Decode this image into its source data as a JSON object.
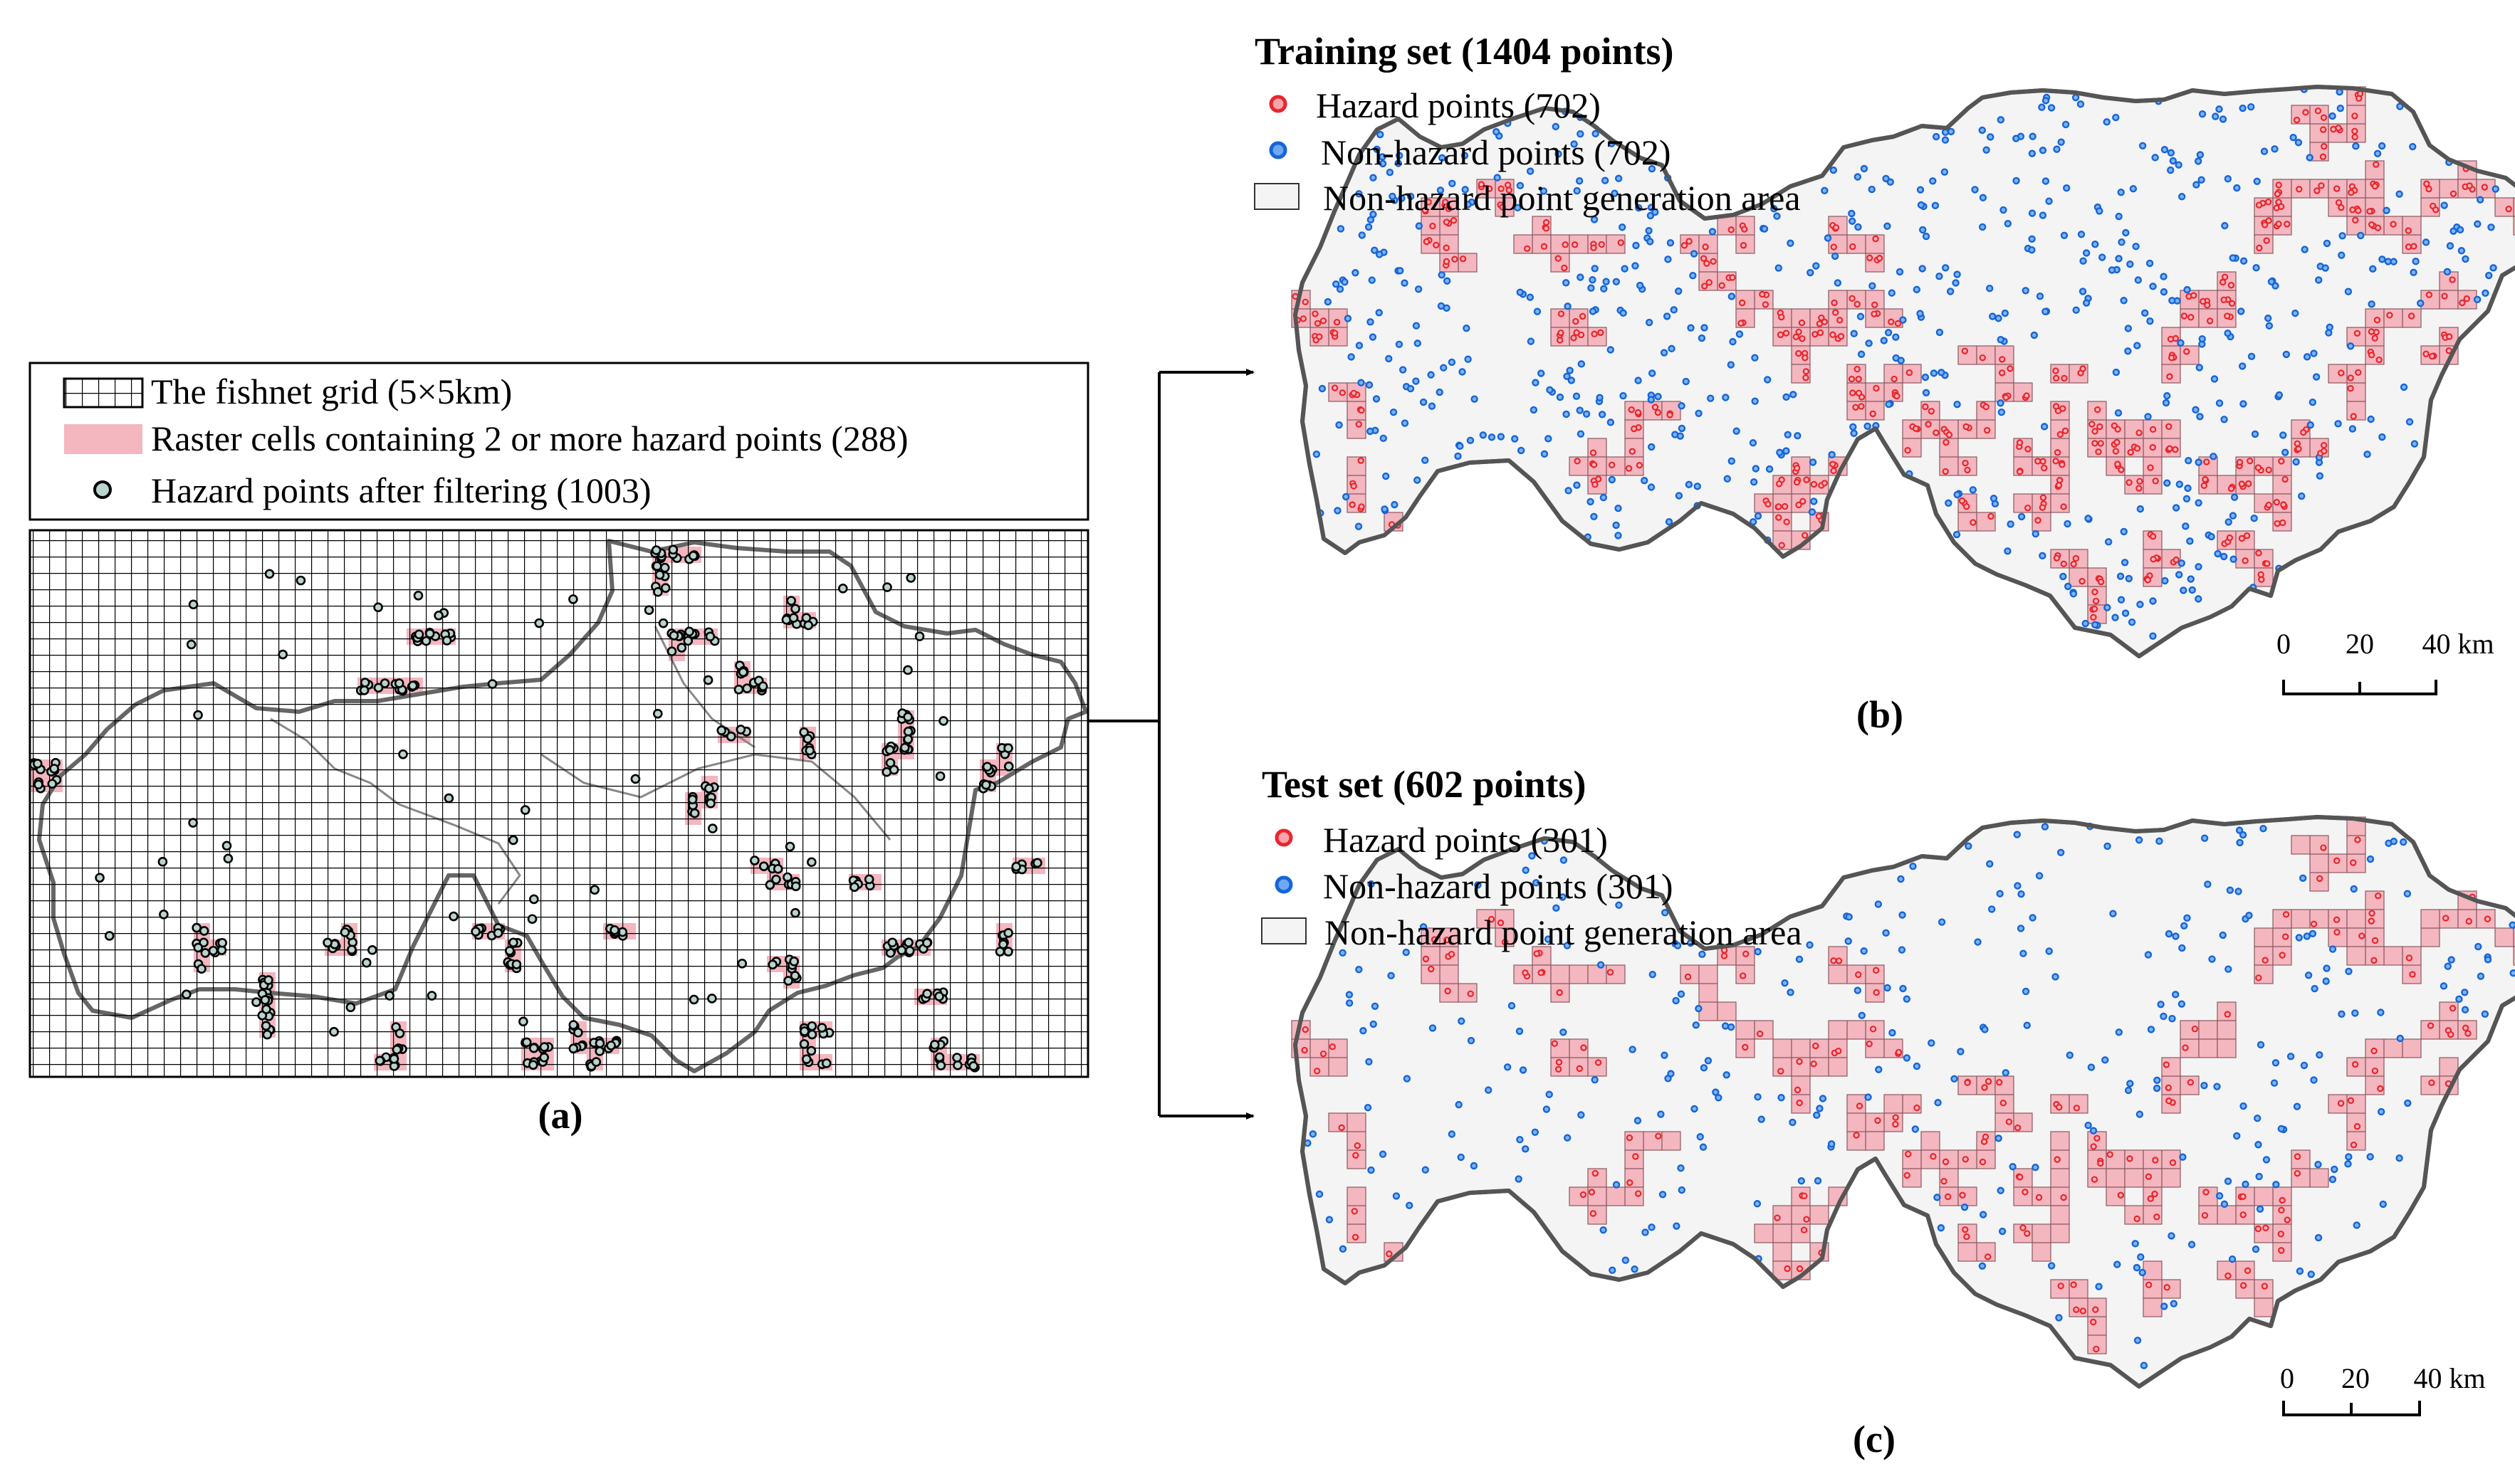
{
  "panel_a": {
    "legend": {
      "grid_label": "The fishnet grid (5×5km)",
      "cells_label": "Raster cells containing 2 or more hazard points (288)",
      "points_label": "Hazard points after filtering (1003)"
    },
    "caption": "(a)"
  },
  "panel_b": {
    "title": "Training set (1404 points)",
    "legend": {
      "hazard_label": "Hazard points (702)",
      "nonhazard_label": "Non-hazard points (702)",
      "area_label": "Non-hazard point generation area"
    },
    "caption": "(b)",
    "scale": {
      "ticks": [
        "0",
        "20",
        "40 km"
      ]
    }
  },
  "panel_c": {
    "title": "Test set (602 points)",
    "legend": {
      "hazard_label": "Hazard points (301)",
      "nonhazard_label": "Non-hazard points (301)",
      "area_label": "Non-hazard point generation area"
    },
    "caption": "(c)",
    "scale": {
      "ticks": [
        "0",
        "20",
        "40 km"
      ]
    }
  },
  "colors": {
    "cell_fill": "#f4b6bf",
    "hazard_point": "#e8262e",
    "nonhazard_point": "#1565d8",
    "filtered_point_fill": "#b9d3cd",
    "area_fill": "#f4f4f4",
    "boundary": "#555555"
  }
}
